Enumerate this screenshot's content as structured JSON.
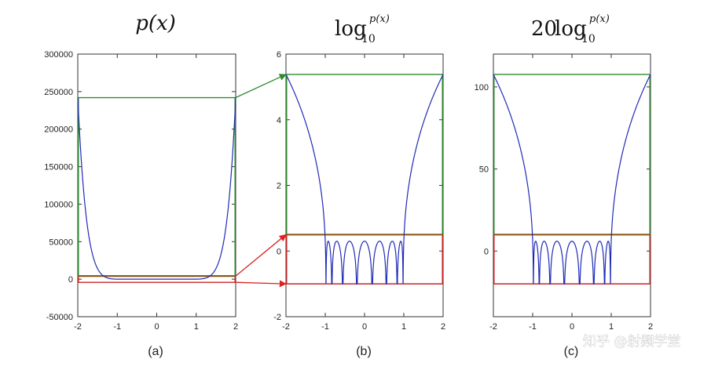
{
  "chart_data": [
    {
      "type": "line",
      "title": "p(x)",
      "caption": "(a)",
      "xlim": [
        -2,
        2
      ],
      "ylim": [
        -50000,
        300000
      ],
      "x_ticks": [
        "-2",
        "-1",
        "0",
        "1",
        "2"
      ],
      "y_ticks": [
        "-50000",
        "0",
        "50000",
        "100000",
        "150000",
        "200000",
        "250000",
        "300000"
      ],
      "series": [
        {
          "name": "p(x)",
          "color": "#1f2bb8",
          "function": "prod_{k} (x - x_k), x_k = cos((2k+1)pi/16), k = 0..7; scaled to about 240000 at x = ±2"
        }
      ],
      "guides": [
        {
          "name": "peak-level",
          "color": "#2e8b2e",
          "y": 242000
        },
        {
          "name": "upper-oscillation-bound",
          "color": "#8b5a1a",
          "y": 4200
        },
        {
          "name": "lower-oscillation-bound",
          "color": "#cc2222",
          "y": -4200
        }
      ]
    },
    {
      "type": "line",
      "title": "log_10 p(x)",
      "title_parts": {
        "base": "log",
        "subscript": "10",
        "superscript": "p(x)"
      },
      "caption": "(b)",
      "xlim": [
        -2,
        2
      ],
      "ylim": [
        -2,
        6
      ],
      "x_ticks": [
        "-2",
        "-1",
        "0",
        "1",
        "2"
      ],
      "y_ticks": [
        "-2",
        "0",
        "2",
        "4",
        "6"
      ],
      "series": [
        {
          "name": "log10|p(x)|",
          "color": "#1f2bb8",
          "peak_value": 5.38,
          "lobe_peak": 0.3,
          "clip_floor": -1.0
        }
      ],
      "guides": [
        {
          "name": "peak-level",
          "color": "#2e8b2e",
          "y": 5.38
        },
        {
          "name": "upper-oscillation-bound",
          "color": "#8b5a1a",
          "y": 0.5
        },
        {
          "name": "floor",
          "color": "#cc2222",
          "y": -1.0
        }
      ]
    },
    {
      "type": "line",
      "title": "20 log_10 p(x)",
      "title_parts": {
        "prefix": "20",
        "base": "log",
        "subscript": "10",
        "superscript": "p(x)"
      },
      "caption": "(c)",
      "xlim": [
        -2,
        2
      ],
      "ylim": [
        -40,
        120
      ],
      "x_ticks": [
        "-2",
        "-1",
        "0",
        "1",
        "2"
      ],
      "y_ticks": [
        "0",
        "50",
        "100"
      ],
      "series": [
        {
          "name": "20log10|p(x)|",
          "color": "#1f2bb8",
          "peak_value": 107.6,
          "lobe_peak": 6,
          "clip_floor": -20
        }
      ],
      "guides": [
        {
          "name": "peak-level",
          "color": "#2e8b2e",
          "y": 107.6
        },
        {
          "name": "upper-oscillation-bound",
          "color": "#8b5a1a",
          "y": 10
        },
        {
          "name": "floor",
          "color": "#cc2222",
          "y": -20
        }
      ]
    }
  ],
  "watermark": "知乎 @射频学堂"
}
